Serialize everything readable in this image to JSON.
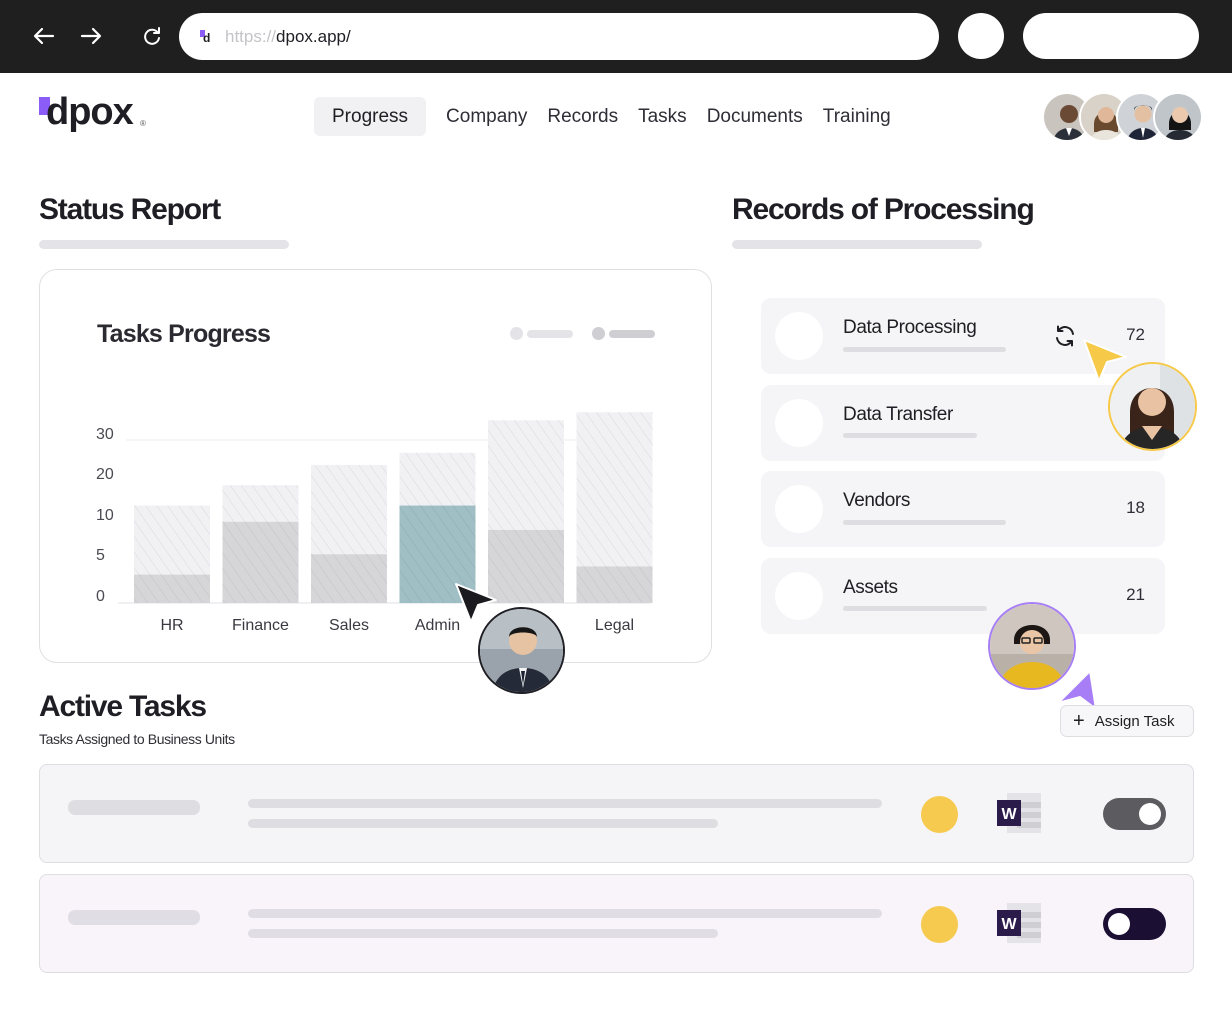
{
  "browser": {
    "url_scheme": "https://",
    "url_host": "dpox.app/"
  },
  "logo": {
    "text": "dpox"
  },
  "nav": {
    "items": [
      {
        "label": "Progress"
      },
      {
        "label": "Company"
      },
      {
        "label": "Records"
      },
      {
        "label": "Tasks"
      },
      {
        "label": "Documents"
      },
      {
        "label": "Training"
      }
    ],
    "active": "Progress"
  },
  "status_report": {
    "title": "Status Report",
    "card_title": "Tasks Progress"
  },
  "chart_data": {
    "type": "bar",
    "categories": [
      "HR",
      "Finance",
      "Sales",
      "Admin",
      "",
      "Legal"
    ],
    "yticks": [
      "30",
      "20",
      "10",
      "5",
      "0"
    ],
    "series": [
      {
        "values": [
          24,
          29,
          34,
          37,
          45,
          47
        ]
      },
      {
        "values": [
          7,
          20,
          12,
          24,
          18,
          9
        ]
      }
    ],
    "highlight_category": "Admin",
    "colors": {
      "total": "#f1f1f4",
      "completed": "#d6d6d9",
      "highlight": "#9fbfc4"
    }
  },
  "records": {
    "title": "Records of Processing",
    "items": [
      {
        "name": "Data Processing",
        "count": "72"
      },
      {
        "name": "Data Transfer",
        "count": ""
      },
      {
        "name": "Vendors",
        "count": "18"
      },
      {
        "name": "Assets",
        "count": "21"
      }
    ]
  },
  "active_tasks": {
    "title": "Active Tasks",
    "subtitle": "Tasks Assigned to Business Units",
    "assign_label": "Assign Task",
    "rows": [
      {
        "toggle_on": true
      },
      {
        "toggle_on": false
      }
    ]
  },
  "colors": {
    "brand": "#8b5cf6",
    "yellow_cursor": "#f7c948",
    "purple_cursor": "#a77ef5",
    "dark_toggle": "#1b1033",
    "gray_toggle": "#5b5b60"
  }
}
